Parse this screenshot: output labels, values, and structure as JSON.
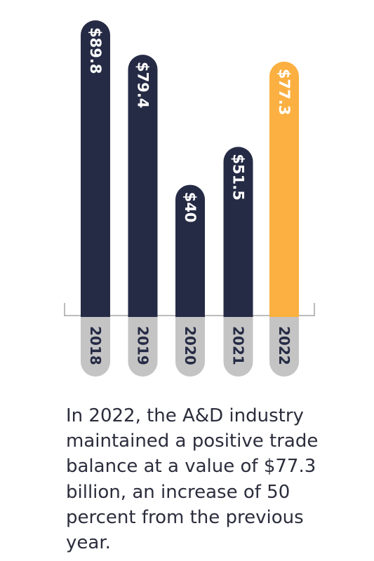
{
  "chart_data": {
    "type": "bar",
    "categories": [
      "2018",
      "2019",
      "2020",
      "2021",
      "2022"
    ],
    "values": [
      89.8,
      79.4,
      40,
      51.5,
      77.3
    ],
    "value_labels": [
      "$89.8",
      "$79.4",
      "$40",
      "$51.5",
      "$77.3"
    ],
    "highlight_index": 4,
    "title": "",
    "xlabel": "",
    "ylabel": "",
    "ylim": [
      0,
      89.8
    ],
    "grid": false,
    "legend": "none"
  },
  "colors": {
    "bar": "#262b45",
    "highlight_bar": "#fbb041",
    "category_pill": "#c4c4c4",
    "axis": "#a6a6a6",
    "value_text": "#ffffff",
    "category_text": "#262b45",
    "caption_text": "#2b2d3c"
  },
  "caption": {
    "lines": [
      "In 2022, the A&D industry",
      "maintained a positive trade",
      "balance at a value of $77.3",
      "billion, an increase of 50",
      "percent from the previous",
      "year."
    ]
  }
}
